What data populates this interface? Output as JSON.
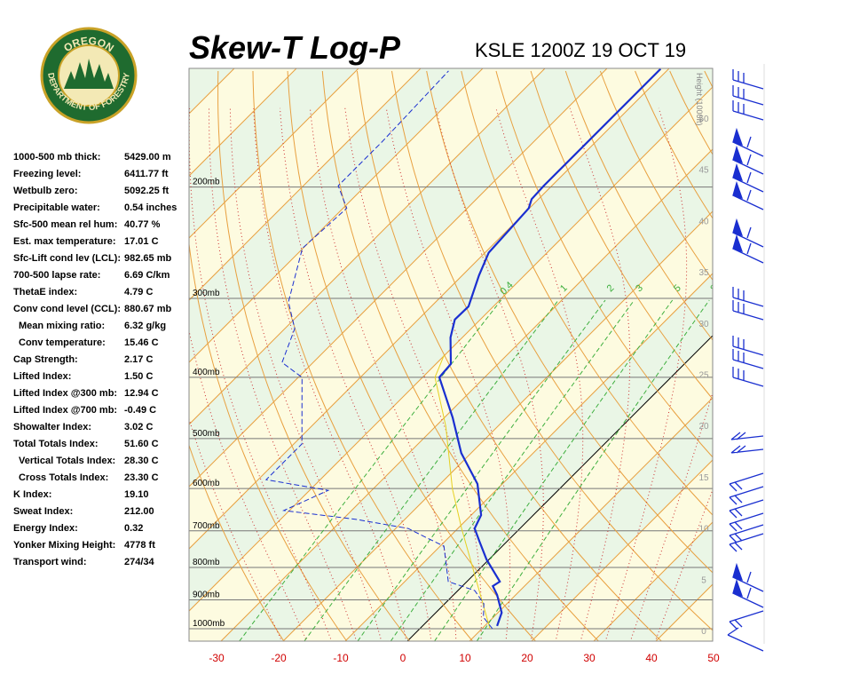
{
  "logo": {
    "top": "OREGON",
    "bottom": "DEPARTMENT OF FORESTRY"
  },
  "title": "Skew-T Log-P",
  "station": "KSLE 1200Z 19 OCT 19",
  "indices": [
    [
      "1000-500 mb thick:",
      "5429.00 m"
    ],
    [
      "Freezing level:",
      "6411.77 ft"
    ],
    [
      "Wetbulb zero:",
      "5092.25 ft"
    ],
    [
      "Precipitable water:",
      "0.54 inches"
    ],
    [
      "Sfc-500 mean rel hum:",
      "40.77 %"
    ],
    [
      "Est. max temperature:",
      "17.01 C"
    ],
    [
      "Sfc-Lift cond lev (LCL):",
      "982.65 mb"
    ],
    [
      "700-500 lapse rate:",
      "6.69 C/km"
    ],
    [
      "ThetaE index:",
      "4.79 C"
    ],
    [
      "Conv cond level (CCL):",
      "880.67 mb"
    ],
    [
      "Mean mixing ratio:",
      "6.32 g/kg"
    ],
    [
      "Conv temperature:",
      "15.46 C"
    ],
    [
      "Cap Strength:",
      "2.17 C"
    ],
    [
      "Lifted Index:",
      "1.50 C"
    ],
    [
      "Lifted Index @300 mb:",
      "12.94 C"
    ],
    [
      "Lifted Index @700 mb:",
      "-0.49 C"
    ],
    [
      "Showalter Index:",
      "3.02 C"
    ],
    [
      "Total Totals Index:",
      "51.60 C"
    ],
    [
      "Vertical Totals Index:",
      "28.30 C"
    ],
    [
      "Cross Totals Index:",
      "23.30 C"
    ],
    [
      "K Index:",
      "19.10"
    ],
    [
      "Sweat Index:",
      "212.00"
    ],
    [
      "Energy Index:",
      "0.32"
    ],
    [
      "Yonker Mixing Height:",
      "4778 ft"
    ],
    [
      "Transport wind:",
      "274/34"
    ]
  ],
  "pressure_levels": [
    {
      "value": 200,
      "label": "200mb"
    },
    {
      "value": 300,
      "label": "300mb"
    },
    {
      "value": 400,
      "label": "400mb"
    },
    {
      "value": 500,
      "label": "500mb"
    },
    {
      "value": 600,
      "label": "600mb"
    },
    {
      "value": 700,
      "label": "700mb"
    },
    {
      "value": 800,
      "label": "800mb"
    },
    {
      "value": 900,
      "label": "900mb"
    },
    {
      "value": 1000,
      "label": "1000mb"
    }
  ],
  "temperature_ticks": [
    -30,
    -20,
    -10,
    0,
    10,
    20,
    30,
    40,
    50
  ],
  "height_axis": {
    "label": "Height (1000ft)",
    "ticks": [
      0,
      5,
      10,
      15,
      20,
      25,
      30,
      35,
      40,
      45,
      50
    ]
  },
  "mixing_ratio_labels": [
    0.4,
    1,
    2,
    3,
    5,
    8
  ],
  "temperature_profile": {
    "pressure": [
      990,
      943,
      884,
      856,
      842,
      777,
      728,
      694,
      661,
      590,
      527,
      463,
      400,
      381,
      346,
      324,
      309,
      276,
      254,
      216,
      209,
      199,
      130
    ],
    "temperature": [
      12.0,
      10.6,
      7.0,
      4.9,
      5.3,
      -0.4,
      -4.4,
      -7.3,
      -8.4,
      -14.0,
      -21.6,
      -28.7,
      -37.3,
      -37.6,
      -41.9,
      -44.1,
      -44.0,
      -47.3,
      -49.4,
      -50.1,
      -51.1,
      -51.3,
      -51.3
    ]
  },
  "dewpoint_profile": {
    "pressure": [
      1000,
      959,
      913,
      870,
      842,
      740,
      717,
      694,
      671,
      650,
      604,
      581,
      510,
      400,
      379,
      335,
      304,
      250,
      216,
      199,
      187,
      170,
      131
    ],
    "temperature": [
      11.7,
      8.4,
      6.3,
      2.7,
      -3.0,
      -9.4,
      -13.7,
      -18.0,
      -28.0,
      -40.9,
      -37.0,
      -48.7,
      -48.7,
      -59.4,
      -65.0,
      -68.4,
      -73.7,
      -80.1,
      -79.4,
      -84.4,
      -84.4,
      -84.4,
      -85.1
    ]
  },
  "parcel_profile": {
    "pressure": [
      1000,
      694,
      600,
      478,
      400,
      369
    ],
    "temperature": [
      11.3,
      -9.4,
      -17.3,
      -28.4,
      -38.0,
      -40.1
    ]
  }
}
